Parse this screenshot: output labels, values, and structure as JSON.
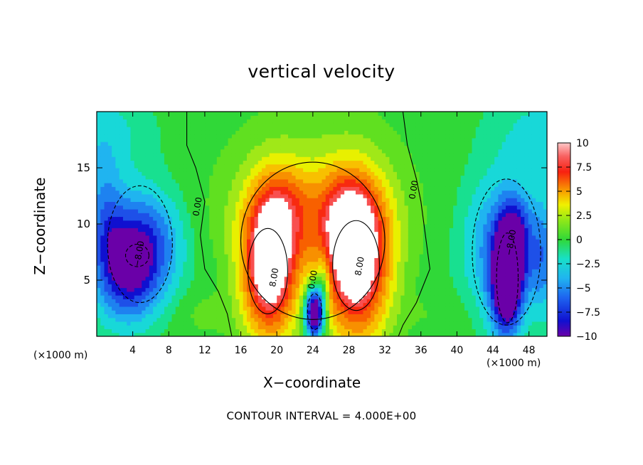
{
  "chart_data": {
    "type": "heatmap",
    "title": "vertical velocity",
    "xlabel": "X−coordinate",
    "ylabel": "Z−coordinate",
    "x_unit_label": "(×1000 m)",
    "z_unit_label": "(×1000 m)",
    "xlim": [
      0,
      50
    ],
    "ylim": [
      0,
      20
    ],
    "x_ticks": [
      4,
      8,
      12,
      16,
      20,
      24,
      28,
      32,
      36,
      40,
      44,
      48
    ],
    "y_ticks": [
      5,
      10,
      15
    ],
    "colorbar": {
      "min": -10,
      "max": 10,
      "ticks": [
        10,
        7.5,
        5,
        2.5,
        0,
        -2.5,
        -5,
        -7.5,
        -10
      ],
      "tick_labels": [
        "10",
        "7.5",
        "5",
        "2.5",
        "0",
        "−2.5",
        "−5",
        "−7.5",
        "−10"
      ]
    },
    "contour_interval_text": "CONTOUR INTERVAL = 4.000E+00",
    "contour_labels": [
      {
        "text": "0.00",
        "x": 11.5,
        "z": 11.5
      },
      {
        "text": "0.00",
        "x": 35.5,
        "z": 13.0
      },
      {
        "text": "0.00",
        "x": 24.3,
        "z": 5.0
      },
      {
        "text": "8.00",
        "x": 20.0,
        "z": 5.2
      },
      {
        "text": "8.00",
        "x": 29.5,
        "z": 6.2
      },
      {
        "text": "−8.00",
        "x": 46.3,
        "z": 8.3
      },
      {
        "text": "−8.00",
        "x": 5.0,
        "z": 7.3
      }
    ],
    "field_features": [
      {
        "label": "updraft",
        "x": 19.0,
        "z": 5.5,
        "value": 12
      },
      {
        "label": "updraft",
        "x": 28.5,
        "z": 6.0,
        "value": 12
      },
      {
        "label": "downdraft",
        "x": 24.2,
        "z": 2.0,
        "value": -12
      },
      {
        "label": "downdraft",
        "x": 45.5,
        "z": 4.5,
        "value": -12
      },
      {
        "label": "downdraft",
        "x": 4.5,
        "z": 8.0,
        "value": -8
      }
    ]
  }
}
